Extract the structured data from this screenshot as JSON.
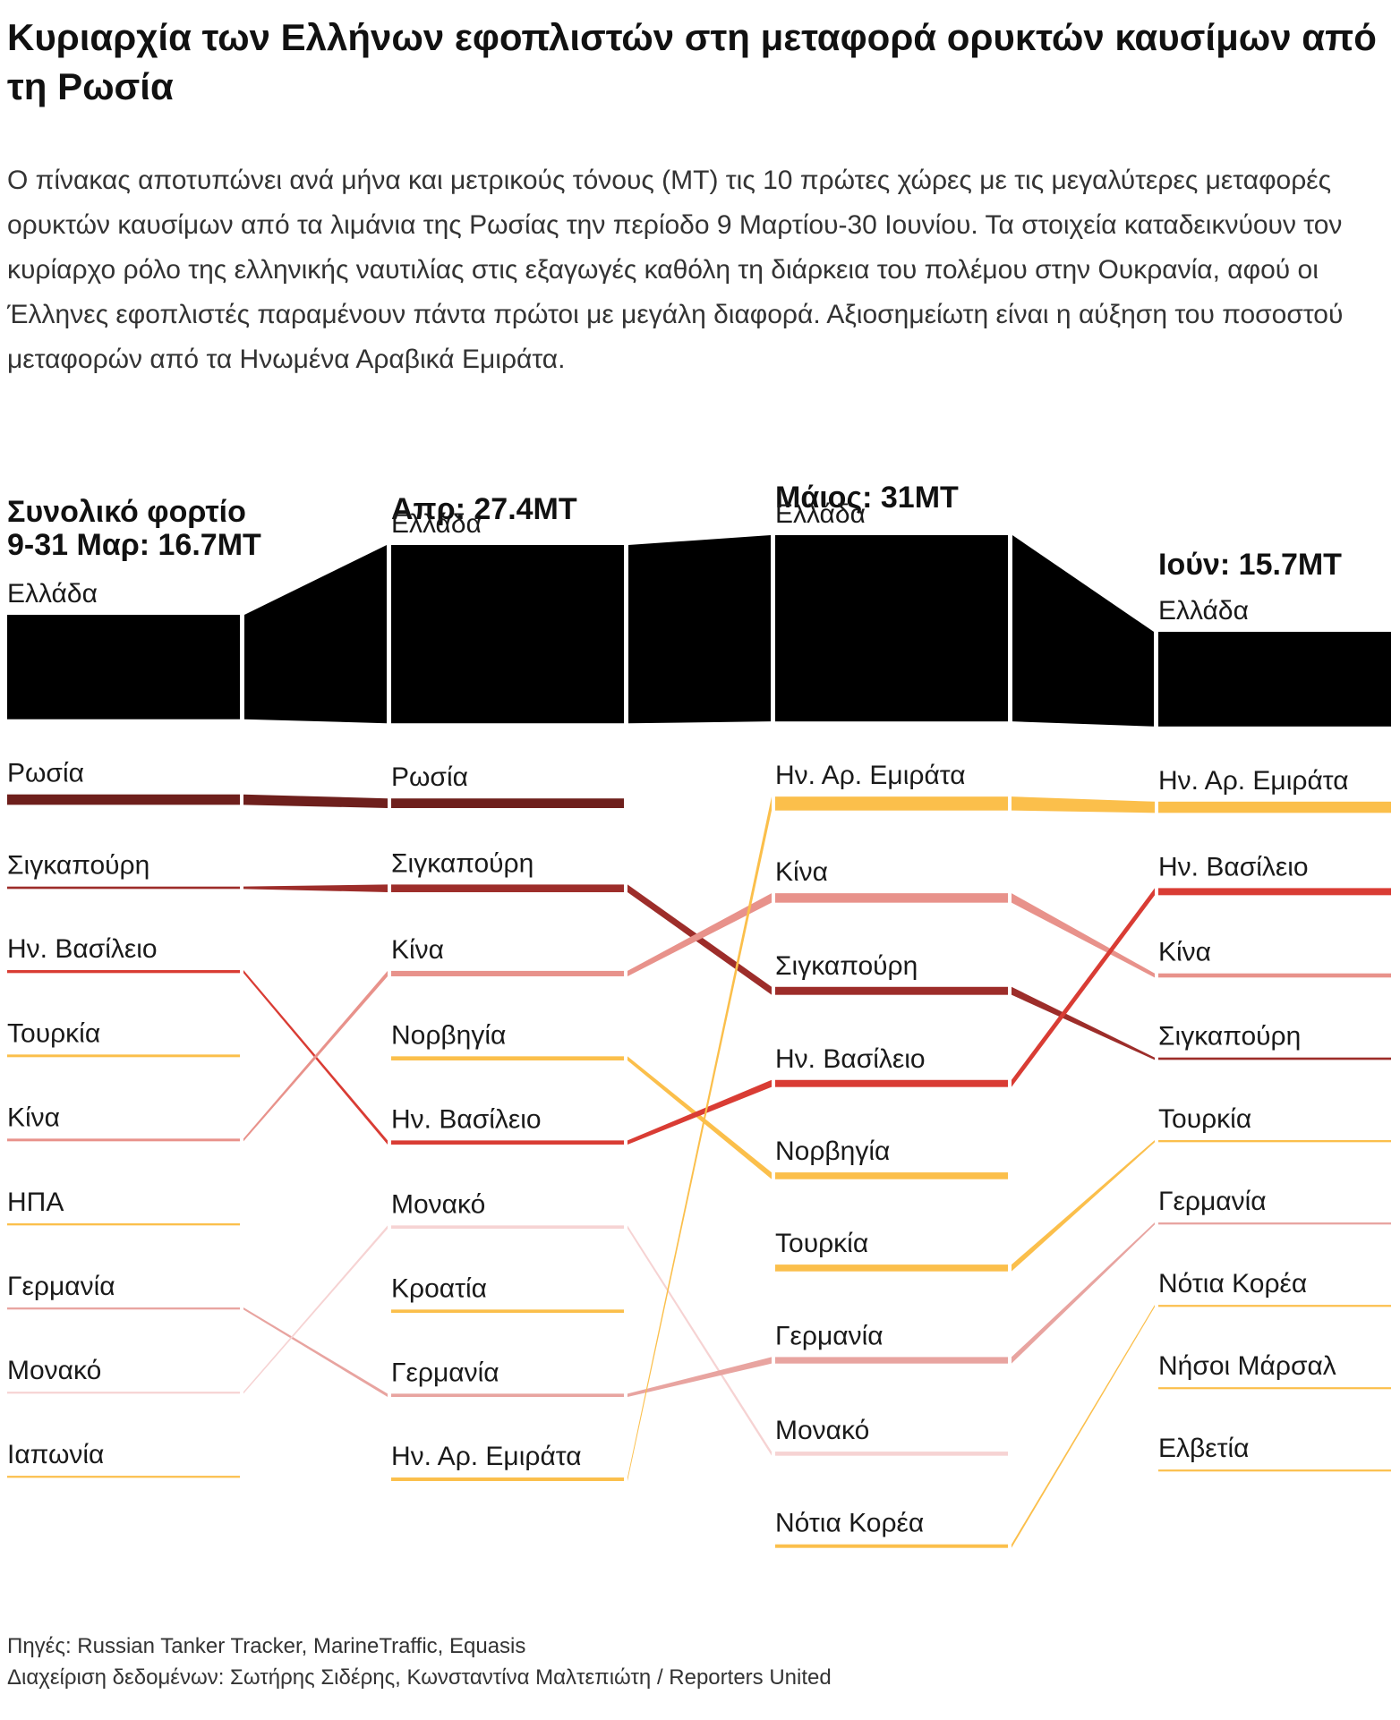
{
  "title": "Κυριαρχία των Ελλήνων εφοπλιστών στη μεταφορά ορυκτών καυσίμων από τη Ρωσία",
  "subtitle": "Ο πίνακας αποτυπώνει ανά μήνα και μετρικούς τόνους (MT) τις 10 πρώτες χώρες με τις μεγαλύτερες μεταφορές ορυκτών καυσίμων από τα λιμάνια της Ρωσίας την περίοδο 9 Μαρτίου-30 Ιουνίου. Τα στοιχεία καταδεικνύουν τον κυρίαρχο ρόλο της ελληνικής ναυτιλίας στις εξαγωγές καθόλη τη διάρκεια του πολέμου στην Ουκρανία, αφού οι Έλληνες εφοπλιστές παραμένουν πάντα πρώτοι με μεγάλη διαφορά. Αξιοσημείωτη είναι η αύξηση του ποσοστού μεταφορών από τα Ηνωμένα Αραβικά Εμιράτα.",
  "footer": {
    "sources": "Πηγές: Russian Tanker Tracker, MarineTraffic, Equasis",
    "credits": "Διαχείριση δεδομένων: Σωτήρης Σιδέρης, Κωνσταντίνα Μαλτεπιώτη / Reporters United"
  },
  "chart_data": {
    "type": "bump",
    "units": "MT",
    "colors": {
      "Ελλάδα": "#000000",
      "Ρωσία": "#6e1f1c",
      "Σιγκαπούρη": "#9d2d2a",
      "Ην. Βασίλειο": "#d93c34",
      "Τουρκία": "#fbbf4b",
      "Κίνα": "#e8928b",
      "ΗΠΑ": "#fbbf4b",
      "Γερμανία": "#e8a4a0",
      "Μονακό": "#f6d3d3",
      "Ιαπωνία": "#fbbf4b",
      "Νορβηγία": "#fbbf4b",
      "Κροατία": "#fbbf4b",
      "Ην. Αρ. Εμιράτα": "#fbbf4b",
      "Νότια Κορέα": "#fbbf4b",
      "Νήσοι Μάρσαλ": "#fbbf4b",
      "Ελβετία": "#fbbf4b"
    },
    "periods": [
      {
        "header_lines": [
          "Συνολικό φορτίο",
          "9-31 Μαρ: 16.7MT"
        ],
        "total": 16.7,
        "countries": [
          {
            "name": "Ελλάδα",
            "value": 6.52
          },
          {
            "name": "Ρωσία",
            "value": 1.76
          },
          {
            "name": "Σιγκαπούρη",
            "value": 0.4
          },
          {
            "name": "Ην. Βασίλειο",
            "value": 0.5
          },
          {
            "name": "Τουρκία",
            "value": 0.45
          },
          {
            "name": "Κίνα",
            "value": 0.45
          },
          {
            "name": "ΗΠΑ",
            "value": 0.35
          },
          {
            "name": "Γερμανία",
            "value": 0.35
          },
          {
            "name": "Μονακό",
            "value": 0.25
          },
          {
            "name": "Ιαπωνία",
            "value": 0.3
          }
        ]
      },
      {
        "header_lines": [
          "Απρ: 27.4MT"
        ],
        "total": 27.4,
        "countries": [
          {
            "name": "Ελλάδα",
            "value": 11.13
          },
          {
            "name": "Ρωσία",
            "value": 1.63
          },
          {
            "name": "Σιγκαπούρη",
            "value": 1.3
          },
          {
            "name": "Κίνα",
            "value": 0.92
          },
          {
            "name": "Νορβηγία",
            "value": 0.7
          },
          {
            "name": "Ην. Βασίλειο",
            "value": 0.7
          },
          {
            "name": "Μονακό",
            "value": 0.55
          },
          {
            "name": "Κροατία",
            "value": 0.55
          },
          {
            "name": "Γερμανία",
            "value": 0.55
          },
          {
            "name": "Ην. Αρ. Εμιράτα",
            "value": 0.6
          }
        ]
      },
      {
        "header_lines": [
          "Μάιος: 31MT"
        ],
        "total": 31,
        "countries": [
          {
            "name": "Ελλάδα",
            "value": 11.63
          },
          {
            "name": "Ην. Αρ. Εμιράτα",
            "value": 2.35
          },
          {
            "name": "Κίνα",
            "value": 1.6
          },
          {
            "name": "Σιγκαπούρη",
            "value": 1.35
          },
          {
            "name": "Ην. Βασίλειο",
            "value": 1.2
          },
          {
            "name": "Νορβηγία",
            "value": 1.15
          },
          {
            "name": "Τουρκία",
            "value": 1.15
          },
          {
            "name": "Γερμανία",
            "value": 1.1
          },
          {
            "name": "Μονακό",
            "value": 0.7
          },
          {
            "name": "Νότια Κορέα",
            "value": 0.6
          }
        ]
      },
      {
        "header_lines": [
          "Ιούν: 15.7MT"
        ],
        "total": 15.7,
        "countries": [
          {
            "name": "Ελλάδα",
            "value": 5.91
          },
          {
            "name": "Ην. Αρ. Εμιράτα",
            "value": 1.9
          },
          {
            "name": "Ην. Βασίλειο",
            "value": 1.2
          },
          {
            "name": "Κίνα",
            "value": 0.7
          },
          {
            "name": "Σιγκαπούρη",
            "value": 0.4
          },
          {
            "name": "Τουρκία",
            "value": 0.35
          },
          {
            "name": "Γερμανία",
            "value": 0.35
          },
          {
            "name": "Νότια Κορέα",
            "value": 0.22
          },
          {
            "name": "Νήσοι Μάρσαλ",
            "value": 0.22
          },
          {
            "name": "Ελβετία",
            "value": 0.22
          }
        ]
      }
    ]
  }
}
